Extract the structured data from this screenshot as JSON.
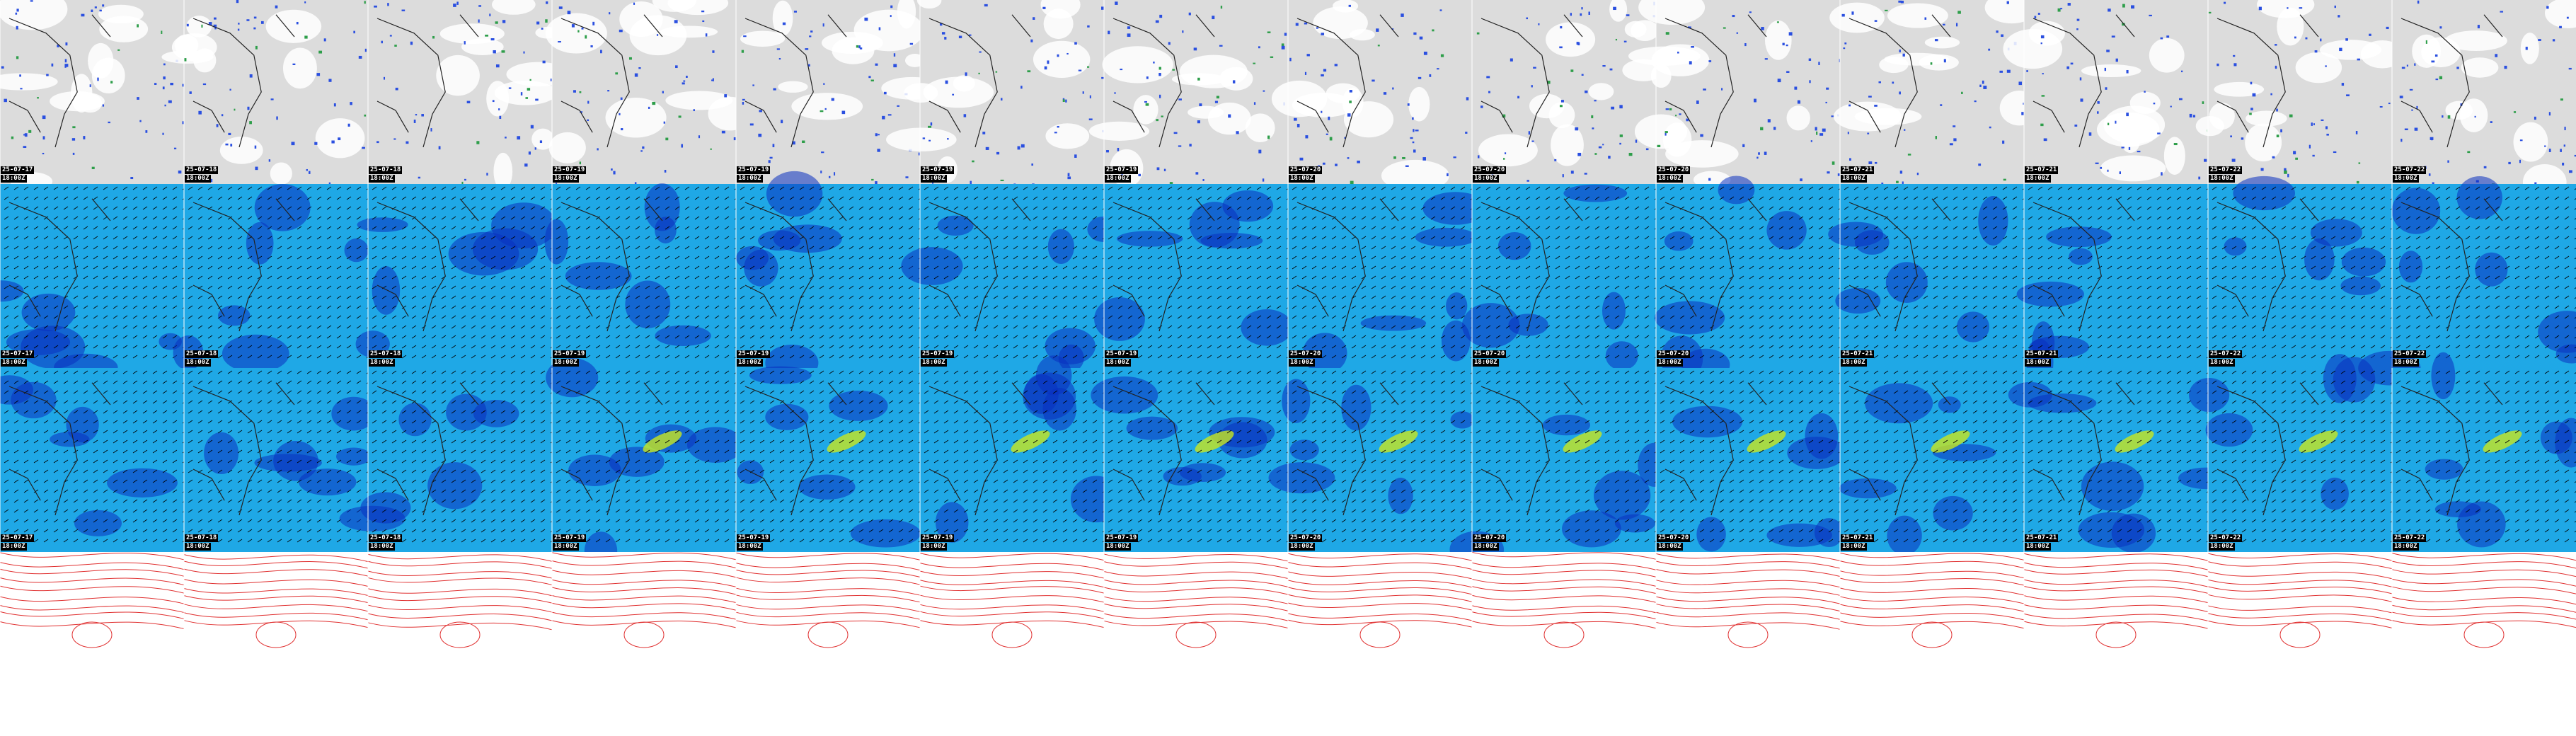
{
  "mosaic": {
    "columns": 14,
    "rows": [
      {
        "id": "cloud-precip",
        "style": "cloud"
      },
      {
        "id": "wind-upper",
        "style": "wind"
      },
      {
        "id": "wind-lower",
        "style": "wind"
      },
      {
        "id": "pressure-contours",
        "style": "contour"
      }
    ],
    "labels": [
      {
        "date": "25-07-17",
        "time": "18:00Z"
      },
      {
        "date": "25-07-18",
        "time": "18:00Z"
      },
      {
        "date": "25-07-18",
        "time": "18:00Z"
      },
      {
        "date": "25-07-19",
        "time": "18:00Z"
      },
      {
        "date": "25-07-19",
        "time": "18:00Z"
      },
      {
        "date": "25-07-19",
        "time": "18:00Z"
      },
      {
        "date": "25-07-19",
        "time": "18:00Z"
      },
      {
        "date": "25-07-20",
        "time": "18:00Z"
      },
      {
        "date": "25-07-20",
        "time": "18:00Z"
      },
      {
        "date": "25-07-20",
        "time": "18:00Z"
      },
      {
        "date": "25-07-21",
        "time": "18:00Z"
      },
      {
        "date": "25-07-21",
        "time": "18:00Z"
      },
      {
        "date": "25-07-22",
        "time": "18:00Z"
      },
      {
        "date": "25-07-22",
        "time": "18:00Z"
      }
    ],
    "colors": {
      "cloud_bg": "#dcdcdc",
      "precip": "#2a4fe0",
      "precip_heavy": "#2e9e4a",
      "wind_bg": "#1fa8e6",
      "wind_low": "#0a2fbf",
      "wind_high": "#c8e61e",
      "contour": "#e03030",
      "coast": "#222222"
    }
  }
}
